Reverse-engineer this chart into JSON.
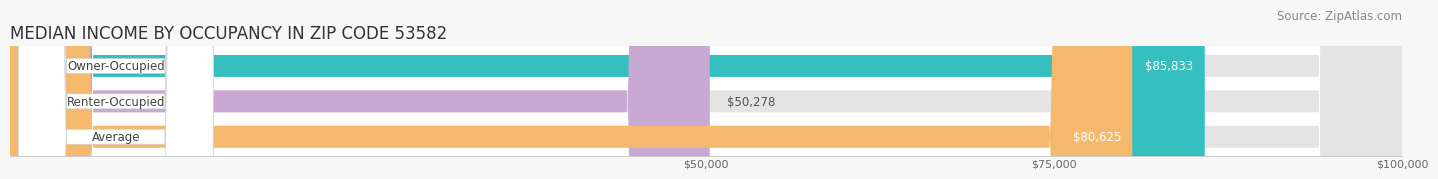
{
  "title": "MEDIAN INCOME BY OCCUPANCY IN ZIP CODE 53582",
  "source": "Source: ZipAtlas.com",
  "categories": [
    "Owner-Occupied",
    "Renter-Occupied",
    "Average"
  ],
  "values": [
    85833,
    50278,
    80625
  ],
  "bar_colors": [
    "#35bfbf",
    "#c9a8d4",
    "#f5b96e"
  ],
  "label_texts": [
    "$85,833",
    "$50,278",
    "$80,625"
  ],
  "label_inside": [
    true,
    false,
    true
  ],
  "bar_bg_color": "#e8e8e8",
  "xlim": [
    0,
    100000
  ],
  "xticks": [
    50000,
    75000,
    100000
  ],
  "xtick_labels": [
    "$50,000",
    "$75,000",
    "$100,000"
  ],
  "background_color": "#f7f7f7",
  "plot_bg_color": "#ffffff",
  "title_fontsize": 12,
  "source_fontsize": 8.5,
  "bar_label_fontsize": 8.5,
  "category_fontsize": 8.5,
  "bar_height": 0.62
}
